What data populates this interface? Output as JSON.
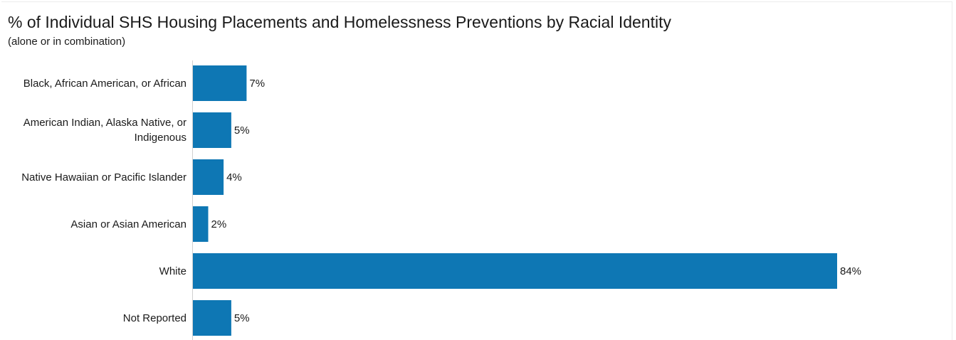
{
  "chart_data": {
    "type": "bar",
    "orientation": "horizontal",
    "title": "% of Individual SHS Housing Placements and Homelessness Preventions by Racial Identity",
    "subtitle": "(alone or in combination)",
    "categories": [
      "Black, African American, or African",
      "American Indian, Alaska Native, or Indigenous",
      "Native Hawaiian or Pacific Islander",
      "Asian or Asian American",
      "White",
      "Not Reported"
    ],
    "values": [
      7,
      5,
      4,
      2,
      84,
      5
    ],
    "data_labels": [
      "7%",
      "5%",
      "4%",
      "2%",
      "84%",
      "5%"
    ],
    "xlim": [
      0,
      84
    ],
    "grid": false,
    "legend": "none",
    "bar_color": "#0e77b4"
  }
}
